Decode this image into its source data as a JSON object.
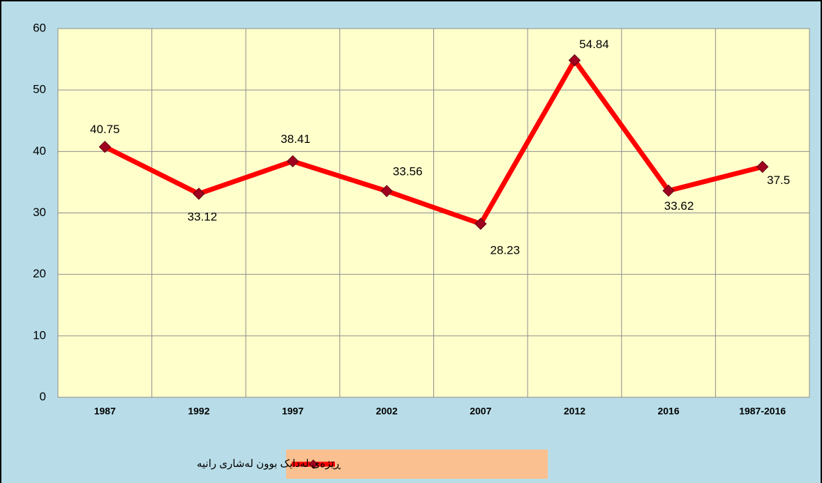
{
  "chart_data": {
    "type": "line",
    "categories": [
      "1987",
      "1992",
      "1997",
      "2002",
      "2007",
      "2012",
      "2016",
      "1987-2016"
    ],
    "series": [
      {
        "name": "ڕێژەی لەدایک بوون  لەشاری رانیە",
        "color": "#ff0000",
        "marker_color": "#a00020",
        "values": [
          40.75,
          33.12,
          38.41,
          33.56,
          28.23,
          54.84,
          33.62,
          37.5
        ]
      }
    ],
    "ylim": [
      0,
      60
    ],
    "yticks": [
      0,
      10,
      20,
      30,
      40,
      50,
      60
    ],
    "grid": true,
    "legend": "bottom"
  }
}
